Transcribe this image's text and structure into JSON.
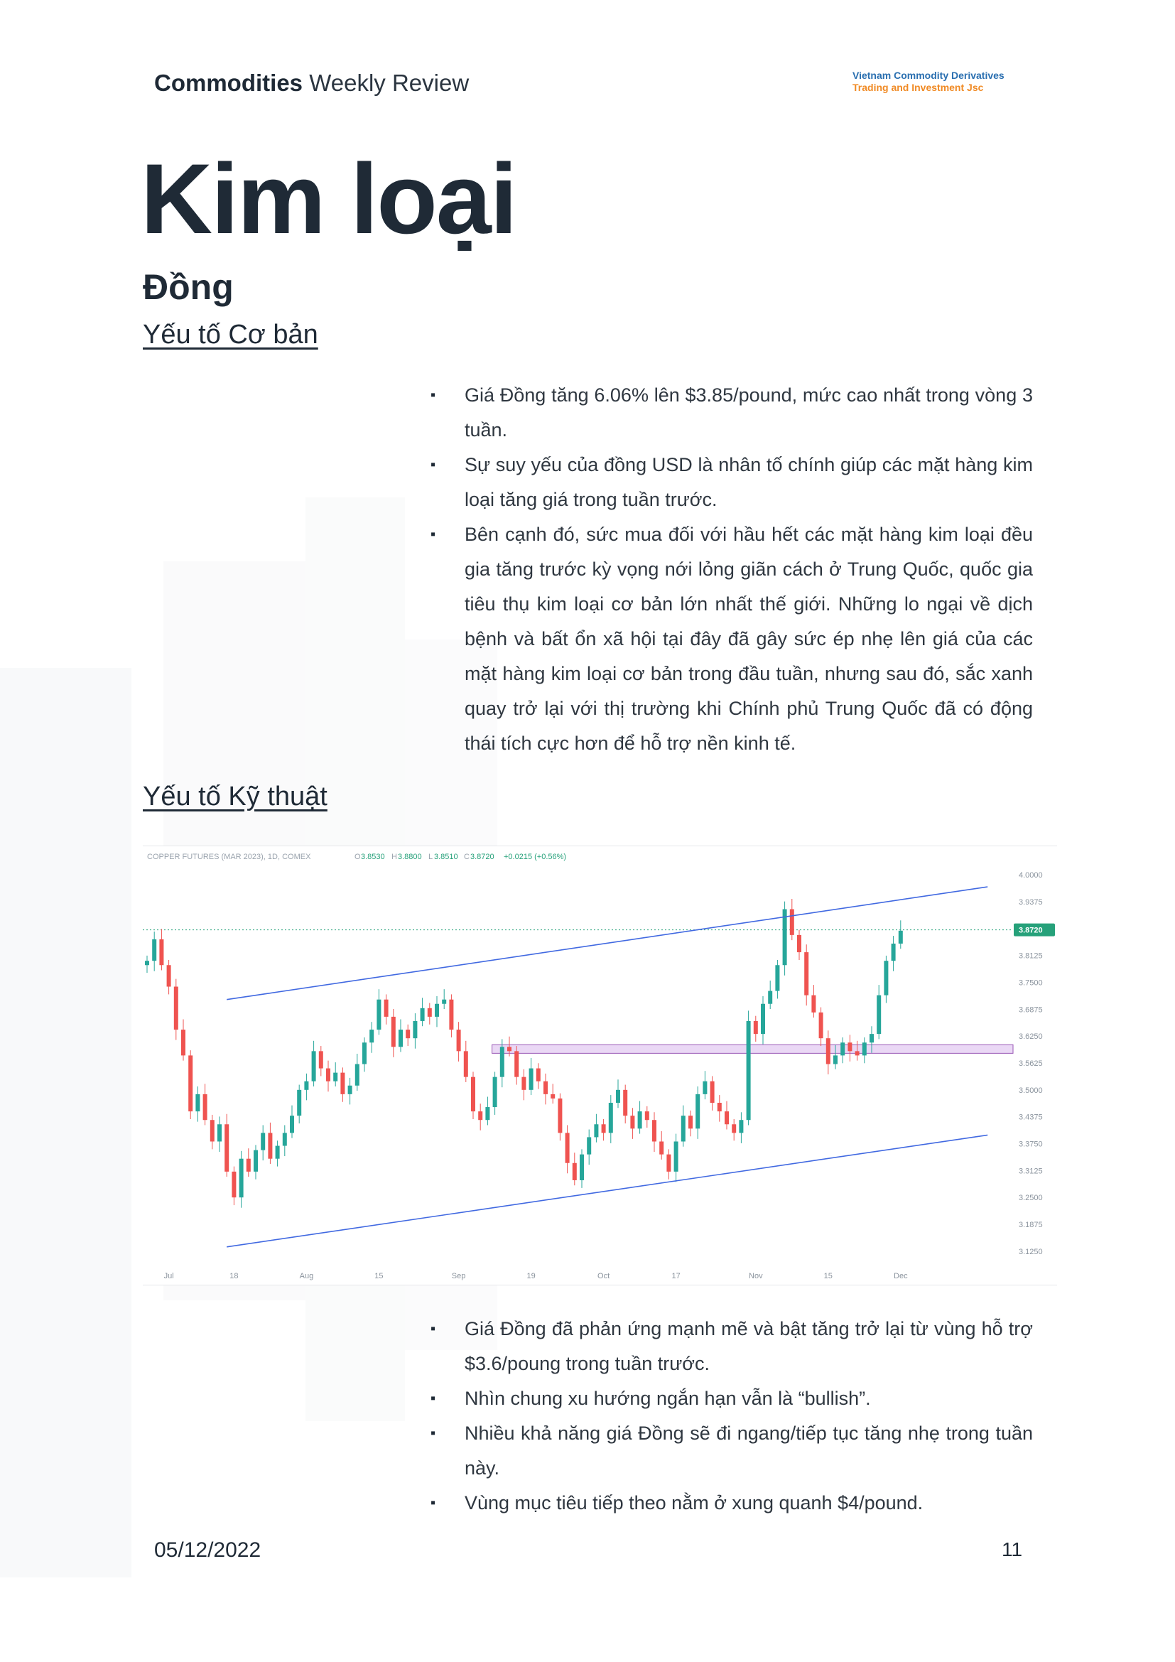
{
  "header": {
    "title_bold": "Commodities",
    "title_regular": "Weekly Review",
    "logo_line1": "Vietnam Commodity Derivatives",
    "logo_line2": "Trading and Investment Jsc"
  },
  "page_title": "Kim loại",
  "subtitle": "Đồng",
  "section1": {
    "heading": "Yếu tố Cơ bản",
    "bullets": [
      "Giá Đồng tăng 6.06% lên $3.85/pound, mức cao nhất trong vòng 3 tuần.",
      "Sự suy yếu của đồng USD là nhân tố chính giúp các mặt hàng kim loại tăng giá trong tuần trước.",
      "Bên cạnh đó, sức mua đối với hầu hết các mặt hàng kim loại đều gia tăng trước kỳ vọng nới lỏng giãn cách ở Trung Quốc, quốc gia tiêu thụ kim loại cơ bản lớn nhất thế giới. Những lo ngại về dịch bệnh và bất ổn xã hội tại đây đã gây sức ép nhẹ lên giá của các mặt hàng kim loại cơ bản trong đầu tuần, nhưng sau đó, sắc xanh quay trở lại với thị trường khi Chính phủ Trung Quốc đã có động thái tích cực hơn để hỗ trợ nền kinh tế."
    ]
  },
  "section2": {
    "heading": "Yếu tố Kỹ thuật",
    "bullets": [
      "Giá Đồng đã phản ứng mạnh mẽ và bật tăng trở lại từ vùng hỗ trợ $3.6/poung trong tuần trước.",
      "Nhìn chung xu hướng ngắn hạn vẫn là “bullish”.",
      "Nhiều khả năng giá Đồng sẽ đi ngang/tiếp tục tăng nhẹ trong tuần này.",
      "Vùng mục tiêu tiếp theo nằm ở xung quanh $4/pound."
    ]
  },
  "chart_data": {
    "type": "candlestick",
    "info": {
      "symbol": "COPPER FUTURES (MAR 2023), 1D, COMEX",
      "o_label": "O",
      "o": "3.8530",
      "h_label": "H",
      "h": "3.8800",
      "l_label": "L",
      "l": "3.8510",
      "c_label": "C",
      "c": "3.8720",
      "change": "+0.0215 (+0.56%)"
    },
    "last_price": "3.8720",
    "ylim": [
      3.1,
      4.02
    ],
    "y_ticks": [
      "4.0000",
      "3.9375",
      "3.8750",
      "3.8125",
      "3.7500",
      "3.6875",
      "3.6250",
      "3.5625",
      "3.5000",
      "3.4375",
      "3.3750",
      "3.3125",
      "3.2500",
      "3.1875",
      "3.1250"
    ],
    "x_ticks": [
      {
        "label": "Jul",
        "i": 3
      },
      {
        "label": "18",
        "i": 12
      },
      {
        "label": "Aug",
        "i": 22
      },
      {
        "label": "15",
        "i": 32
      },
      {
        "label": "Sep",
        "i": 43
      },
      {
        "label": "19",
        "i": 53
      },
      {
        "label": "Oct",
        "i": 63
      },
      {
        "label": "17",
        "i": 73
      },
      {
        "label": "Nov",
        "i": 84
      },
      {
        "label": "15",
        "i": 94
      },
      {
        "label": "Dec",
        "i": 104
      }
    ],
    "closes": [
      3.8,
      3.85,
      3.79,
      3.74,
      3.64,
      3.58,
      3.45,
      3.49,
      3.43,
      3.38,
      3.42,
      3.31,
      3.25,
      3.34,
      3.31,
      3.36,
      3.4,
      3.34,
      3.37,
      3.4,
      3.44,
      3.5,
      3.52,
      3.59,
      3.55,
      3.52,
      3.54,
      3.49,
      3.51,
      3.56,
      3.61,
      3.64,
      3.71,
      3.67,
      3.6,
      3.64,
      3.62,
      3.66,
      3.69,
      3.67,
      3.7,
      3.71,
      3.64,
      3.59,
      3.53,
      3.45,
      3.43,
      3.46,
      3.53,
      3.6,
      3.59,
      3.53,
      3.5,
      3.55,
      3.52,
      3.49,
      3.48,
      3.4,
      3.33,
      3.29,
      3.35,
      3.39,
      3.42,
      3.4,
      3.47,
      3.5,
      3.44,
      3.41,
      3.45,
      3.43,
      3.38,
      3.35,
      3.31,
      3.38,
      3.44,
      3.41,
      3.49,
      3.52,
      3.47,
      3.45,
      3.42,
      3.4,
      3.43,
      3.66,
      3.63,
      3.7,
      3.73,
      3.79,
      3.92,
      3.86,
      3.82,
      3.72,
      3.68,
      3.62,
      3.56,
      3.58,
      3.61,
      3.59,
      3.58,
      3.61,
      3.63,
      3.72,
      3.8,
      3.84,
      3.87
    ],
    "resistance_line": {
      "from": {
        "i": 11,
        "price": 3.71
      },
      "to": {
        "i": 116,
        "price": 3.972
      }
    },
    "support_line": {
      "from": {
        "i": 11,
        "price": 3.135
      },
      "to": {
        "i": 116,
        "price": 3.395
      }
    },
    "support_zone": [
      3.585,
      3.605
    ]
  },
  "footer": {
    "date": "05/12/2022",
    "page": "11"
  }
}
